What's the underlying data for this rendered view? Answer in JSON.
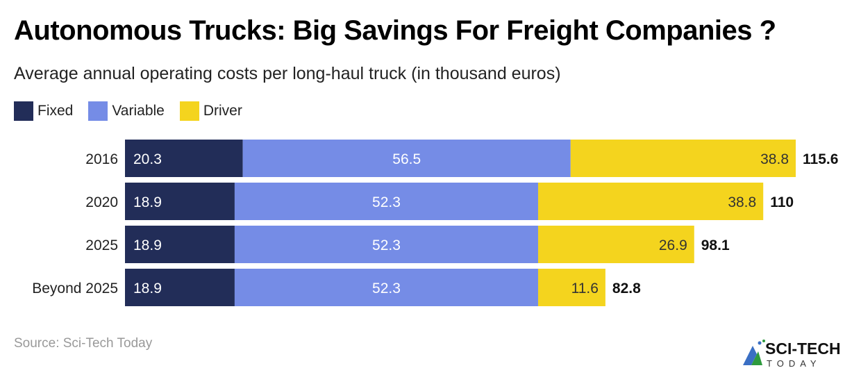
{
  "title": "Autonomous Trucks: Big Savings For Freight Companies ?",
  "subtitle": "Average annual operating costs per long-haul truck (in thousand euros)",
  "source": "Source: Sci-Tech Today",
  "logo": {
    "text": "SCI-TECH",
    "subtext": "TODAY"
  },
  "chart_data": {
    "type": "bar",
    "orientation": "horizontal",
    "stacked": true,
    "categories": [
      "2016",
      "2020",
      "2025",
      "Beyond 2025"
    ],
    "series": [
      {
        "name": "Fixed",
        "color": "#222d58",
        "values": [
          20.3,
          18.9,
          18.9,
          18.9
        ]
      },
      {
        "name": "Variable",
        "color": "#758ce6",
        "values": [
          56.5,
          52.3,
          52.3,
          52.3
        ]
      },
      {
        "name": "Driver",
        "color": "#f4d41e",
        "values": [
          38.8,
          38.8,
          26.9,
          11.6
        ]
      }
    ],
    "totals": [
      "115.6",
      "110",
      "98.1",
      "82.8"
    ],
    "legend": "top-left",
    "grid": false
  }
}
